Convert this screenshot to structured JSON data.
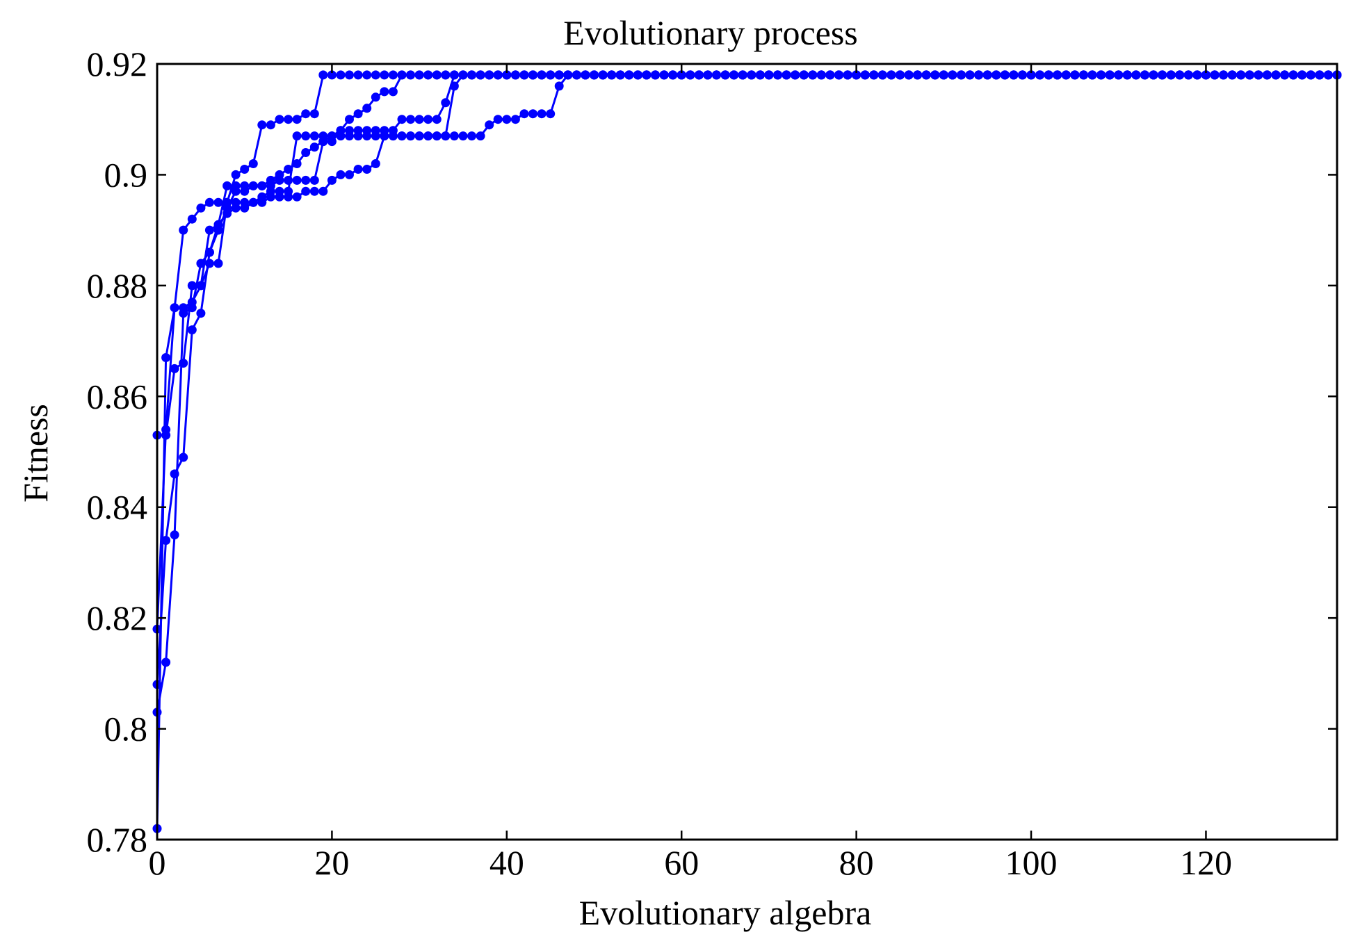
{
  "chart_data": {
    "type": "line",
    "title": "Evolutionary process",
    "xlabel": "Evolutionary algebra",
    "ylabel": "Fitness",
    "xlim": [
      0,
      135
    ],
    "ylim": [
      0.78,
      0.92
    ],
    "xticks": [
      0,
      20,
      40,
      60,
      80,
      100,
      120
    ],
    "yticks": [
      0.78,
      0.8,
      0.82,
      0.84,
      0.86,
      0.88,
      0.9,
      0.92
    ],
    "xtick_labels": [
      "0",
      "20",
      "40",
      "60",
      "80",
      "100",
      "120"
    ],
    "ytick_labels": [
      "0.78",
      "0.8",
      "0.82",
      "0.84",
      "0.86",
      "0.88",
      "0.9",
      "0.92"
    ],
    "grid": false,
    "legend": false,
    "marker": "filled-circle",
    "color": "#0000ff",
    "final_value": 0.918,
    "final_x": 135,
    "series": [
      {
        "x": [
          0,
          1,
          2,
          3,
          4,
          5,
          6,
          7,
          8,
          9,
          10,
          11,
          12,
          13,
          14,
          15,
          16,
          17,
          18,
          19
        ],
        "y": [
          0.782,
          0.867,
          0.876,
          0.89,
          0.892,
          0.894,
          0.895,
          0.895,
          0.895,
          0.9,
          0.901,
          0.902,
          0.909,
          0.909,
          0.91,
          0.91,
          0.91,
          0.911,
          0.911,
          0.918
        ]
      },
      {
        "x": [
          0,
          1,
          2,
          3,
          4,
          5,
          6,
          7,
          8,
          9,
          10,
          11,
          12,
          13,
          14,
          15,
          16,
          17,
          18,
          19,
          20,
          21,
          22,
          23,
          24,
          25,
          26,
          27,
          28,
          29,
          30,
          31,
          32,
          33,
          34,
          35
        ],
        "y": [
          0.853,
          0.853,
          0.865,
          0.866,
          0.88,
          0.88,
          0.884,
          0.884,
          0.895,
          0.895,
          0.895,
          0.895,
          0.895,
          0.896,
          0.896,
          0.896,
          0.896,
          0.897,
          0.897,
          0.897,
          0.899,
          0.9,
          0.9,
          0.901,
          0.901,
          0.902,
          0.907,
          0.907,
          0.907,
          0.907,
          0.907,
          0.907,
          0.907,
          0.907,
          0.916,
          0.918
        ]
      },
      {
        "x": [
          0,
          1,
          2,
          3,
          4,
          5,
          6,
          7,
          8,
          9,
          10,
          11,
          12,
          13,
          14,
          15,
          16,
          17,
          18,
          19,
          20,
          21,
          22,
          23,
          24,
          25,
          26,
          27,
          28,
          29,
          30,
          31,
          32,
          33,
          34,
          35,
          36,
          37,
          38,
          39,
          40,
          41,
          42,
          43,
          44,
          45,
          46,
          47
        ],
        "y": [
          0.818,
          0.854,
          0.876,
          0.876,
          0.877,
          0.88,
          0.89,
          0.891,
          0.893,
          0.894,
          0.894,
          0.895,
          0.896,
          0.897,
          0.897,
          0.897,
          0.907,
          0.907,
          0.907,
          0.907,
          0.907,
          0.907,
          0.907,
          0.907,
          0.907,
          0.907,
          0.907,
          0.907,
          0.907,
          0.907,
          0.907,
          0.907,
          0.907,
          0.907,
          0.907,
          0.907,
          0.907,
          0.907,
          0.909,
          0.91,
          0.91,
          0.91,
          0.911,
          0.911,
          0.911,
          0.911,
          0.916,
          0.918
        ]
      },
      {
        "x": [
          0,
          1,
          2,
          3,
          4,
          5,
          6,
          7,
          8,
          9,
          10,
          11,
          12,
          13,
          14,
          15,
          16,
          17,
          18,
          19,
          20,
          21,
          22,
          23,
          24,
          25,
          26,
          27,
          28
        ],
        "y": [
          0.808,
          0.834,
          0.846,
          0.849,
          0.872,
          0.875,
          0.886,
          0.89,
          0.894,
          0.897,
          0.897,
          0.898,
          0.898,
          0.899,
          0.9,
          0.901,
          0.902,
          0.904,
          0.905,
          0.906,
          0.906,
          0.908,
          0.91,
          0.911,
          0.912,
          0.914,
          0.915,
          0.915,
          0.918
        ]
      },
      {
        "x": [
          0,
          1,
          2,
          3,
          4,
          5,
          6,
          7,
          8,
          9,
          10,
          11,
          12,
          13,
          14,
          15,
          16,
          17,
          18,
          19,
          20,
          21,
          22,
          23,
          24,
          25,
          26,
          27,
          28,
          29,
          30,
          31,
          32,
          33,
          34
        ],
        "y": [
          0.803,
          0.812,
          0.835,
          0.875,
          0.876,
          0.884,
          0.886,
          0.891,
          0.898,
          0.898,
          0.898,
          0.898,
          0.898,
          0.898,
          0.899,
          0.899,
          0.899,
          0.899,
          0.899,
          0.906,
          0.907,
          0.908,
          0.908,
          0.908,
          0.908,
          0.908,
          0.908,
          0.908,
          0.91,
          0.91,
          0.91,
          0.91,
          0.91,
          0.913,
          0.918
        ]
      }
    ]
  }
}
